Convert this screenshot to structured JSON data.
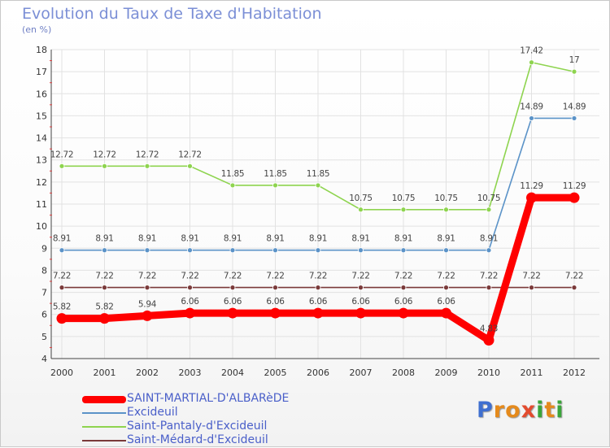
{
  "title": "Evolution du Taux de Taxe d'Habitation",
  "subtitle": "(en %)",
  "logo": {
    "letters": [
      "P",
      "r",
      "o",
      "x",
      "i",
      "t",
      "i"
    ],
    "colors": [
      "#3f6fd0",
      "#e58a1c",
      "#e58a1c",
      "#e34b2e",
      "#3aa53a",
      "#e58a1c",
      "#3aa53a"
    ]
  },
  "chart_data": {
    "type": "line",
    "title": "Evolution du Taux de Taxe d'Habitation",
    "ylabel": "(en %)",
    "xlabel": "",
    "x": [
      2000,
      2001,
      2002,
      2003,
      2004,
      2005,
      2006,
      2007,
      2008,
      2009,
      2010,
      2011,
      2012
    ],
    "ylim": [
      4,
      18
    ],
    "yticks": [
      4,
      5,
      6,
      7,
      8,
      9,
      10,
      11,
      12,
      13,
      14,
      15,
      16,
      17,
      18
    ],
    "grid": true,
    "legend_position": "bottom-left",
    "series": [
      {
        "name": "SAINT-MARTIAL-D'ALBARèDE",
        "color": "#ff0000",
        "values": [
          5.82,
          5.82,
          5.94,
          6.06,
          6.06,
          6.06,
          6.06,
          6.06,
          6.06,
          6.06,
          4.83,
          11.29,
          11.29
        ],
        "labels": [
          "5.82",
          "5.82",
          "5.94",
          "6.06",
          "6.06",
          "6.06",
          "6.06",
          "6.06",
          "6.06",
          "6.06",
          "4.83",
          "11.29",
          "11.29"
        ]
      },
      {
        "name": "Excideuil",
        "color": "#5b93c8",
        "values": [
          8.91,
          8.91,
          8.91,
          8.91,
          8.91,
          8.91,
          8.91,
          8.91,
          8.91,
          8.91,
          8.91,
          14.89,
          14.89
        ],
        "labels": [
          "8.91",
          "8.91",
          "8.91",
          "8.91",
          "8.91",
          "8.91",
          "8.91",
          "8.91",
          "8.91",
          "8.91",
          "8.91",
          "14.89",
          "14.89"
        ]
      },
      {
        "name": "Saint-Pantaly-d'Excideuil",
        "color": "#8ed44f",
        "values": [
          12.72,
          12.72,
          12.72,
          12.72,
          11.85,
          11.85,
          11.85,
          10.75,
          10.75,
          10.75,
          10.75,
          17.42,
          17
        ],
        "labels": [
          "12.72",
          "12.72",
          "12.72",
          "12.72",
          "11.85",
          "11.85",
          "11.85",
          "10.75",
          "10.75",
          "10.75",
          "10.75",
          "17.42",
          "17"
        ]
      },
      {
        "name": "Saint-Médard-d'Excideuil",
        "color": "#7a3a3a",
        "values": [
          7.22,
          7.22,
          7.22,
          7.22,
          7.22,
          7.22,
          7.22,
          7.22,
          7.22,
          7.22,
          7.22,
          7.22,
          7.22
        ],
        "labels": [
          "7.22",
          "7.22",
          "7.22",
          "7.22",
          "7.22",
          "7.22",
          "7.22",
          "7.22",
          "7.22",
          "7.22",
          "7.22",
          "7.22",
          "7.22"
        ]
      }
    ]
  }
}
